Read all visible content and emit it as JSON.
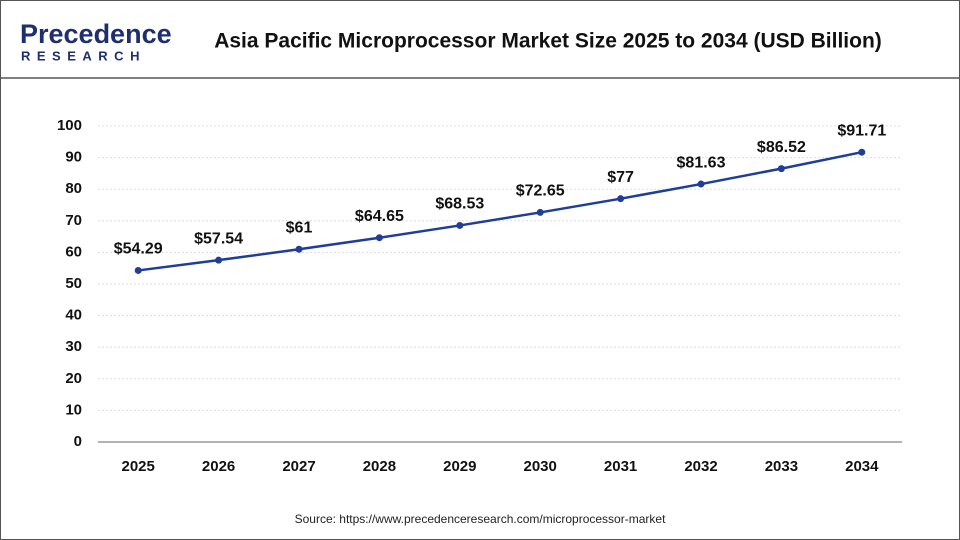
{
  "logo": {
    "name": "Precedence",
    "tagline": "RESEARCH"
  },
  "chart_data": {
    "type": "line",
    "title": "Asia Pacific Microprocessor Market Size 2025 to 2034 (USD Billion)",
    "categories": [
      "2025",
      "2026",
      "2027",
      "2028",
      "2029",
      "2030",
      "2031",
      "2032",
      "2033",
      "2034"
    ],
    "series": [
      {
        "name": "Market Size",
        "color": "#1f3d99",
        "values": [
          54.29,
          57.54,
          61,
          64.65,
          68.53,
          72.65,
          77,
          81.63,
          86.52,
          91.71
        ],
        "value_labels": [
          "$54.29",
          "$57.54",
          "$61",
          "$64.65",
          "$68.53",
          "$72.65",
          "$77",
          "$81.63",
          "$86.52",
          "$91.71"
        ]
      }
    ],
    "ylim": [
      0,
      100
    ],
    "yticks": [
      0,
      10,
      20,
      30,
      40,
      50,
      60,
      70,
      80,
      90,
      100
    ],
    "grid": true,
    "source": "Source: https://www.precedenceresearch.com/microprocessor-market"
  }
}
